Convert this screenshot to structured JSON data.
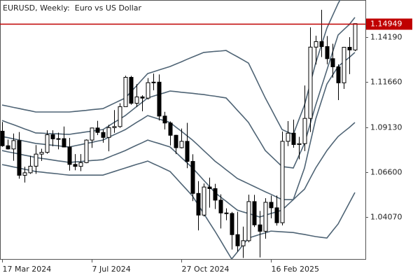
{
  "chart_data": {
    "type": "candlestick",
    "title": "EURUSD, Weekly:  Euro vs US Dollar",
    "categories": [
      "17 Mar 2024",
      null,
      null,
      null,
      null,
      null,
      null,
      null,
      null,
      null,
      null,
      null,
      null,
      null,
      null,
      null,
      "7 Jul 2024",
      null,
      null,
      null,
      null,
      null,
      null,
      null,
      null,
      null,
      null,
      null,
      null,
      null,
      null,
      null,
      "27 Oct 2024",
      null,
      null,
      null,
      null,
      null,
      null,
      null,
      null,
      null,
      null,
      null,
      null,
      null,
      null,
      null,
      "16 Feb 2025",
      null,
      null,
      null,
      null,
      null,
      null,
      null,
      null,
      null,
      null,
      null,
      null,
      null,
      null,
      null
    ],
    "open": [
      1.089,
      1.0808,
      1.079,
      1.0837,
      1.0642,
      1.0656,
      1.0693,
      1.0761,
      1.0771,
      1.087,
      1.0847,
      1.0848,
      1.0801,
      1.0703,
      1.0692,
      1.0713,
      1.084,
      1.0908,
      1.0883,
      1.0855,
      1.091,
      1.0916,
      1.1028,
      1.1193,
      1.1047,
      1.1083,
      1.1076,
      1.1163,
      1.1166,
      1.0975,
      1.0936,
      1.0867,
      1.0797,
      1.0833,
      1.072,
      1.054,
      1.0418,
      1.0576,
      1.0567,
      1.0502,
      1.043,
      1.0427,
      1.0308,
      1.0245,
      1.0274,
      1.0494,
      1.0363,
      1.0327,
      1.049,
      1.0459,
      1.0375,
      1.0833,
      1.0879,
      1.0815,
      1.082,
      1.0962,
      1.1363,
      1.1394,
      1.1366,
      1.1298,
      1.1252,
      1.1162,
      1.1362,
      1.1347
    ],
    "high": [
      1.0942,
      1.0843,
      1.0877,
      1.0885,
      1.069,
      1.0752,
      1.0812,
      1.0791,
      1.0895,
      1.0895,
      1.0882,
      1.0916,
      1.0852,
      1.0761,
      1.0761,
      1.0844,
      1.091,
      1.0948,
      1.0899,
      1.0926,
      1.1009,
      1.1047,
      1.1202,
      1.1201,
      1.1155,
      1.1092,
      1.1189,
      1.1214,
      1.1209,
      1.0999,
      1.0945,
      1.087,
      1.0905,
      1.0937,
      1.076,
      1.0609,
      1.0596,
      1.0629,
      1.0594,
      1.0535,
      1.0456,
      1.0436,
      1.0437,
      1.0353,
      1.0533,
      1.0532,
      1.0441,
      1.0513,
      1.0528,
      1.0528,
      1.0888,
      1.0947,
      1.0955,
      1.0858,
      1.1147,
      1.1474,
      1.1427,
      1.1573,
      1.1425,
      1.1382,
      1.1266,
      1.1363,
      1.1419,
      1.1495
    ],
    "low": [
      1.0802,
      1.0787,
      1.0724,
      1.0623,
      1.0601,
      1.065,
      1.065,
      1.0723,
      1.0763,
      1.0805,
      1.0788,
      1.08,
      1.0668,
      1.067,
      1.0665,
      1.071,
      1.0796,
      1.0868,
      1.0825,
      1.0777,
      1.0881,
      1.0909,
      1.1028,
      1.1039,
      1.1026,
      1.1002,
      1.1068,
      1.112,
      1.095,
      1.09,
      1.081,
      1.0761,
      1.0793,
      1.0682,
      1.0497,
      1.0332,
      1.041,
      1.046,
      1.0452,
      1.0343,
      1.0389,
      1.0224,
      1.0213,
      1.0177,
      1.0265,
      1.0351,
      1.018,
      1.0285,
      1.04,
      1.0359,
      1.036,
      1.0806,
      1.0797,
      1.0732,
      1.0778,
      1.0885,
      1.1265,
      1.1307,
      1.1266,
      1.1191,
      1.1065,
      1.1128,
      1.1211,
      1.134
    ],
    "close": [
      1.0808,
      1.079,
      1.0837,
      1.0642,
      1.0656,
      1.0693,
      1.0761,
      1.0771,
      1.087,
      1.0847,
      1.0848,
      1.0801,
      1.0703,
      1.0692,
      1.0713,
      1.084,
      1.0908,
      1.0883,
      1.0855,
      1.091,
      1.0916,
      1.1028,
      1.1193,
      1.1047,
      1.1083,
      1.1076,
      1.1163,
      1.1166,
      1.0975,
      1.0936,
      1.0867,
      1.0797,
      1.0833,
      1.072,
      1.054,
      1.0418,
      1.0576,
      1.0567,
      1.0502,
      1.043,
      1.0427,
      1.0308,
      1.0245,
      1.0274,
      1.0494,
      1.0363,
      1.0327,
      1.049,
      1.0459,
      1.0375,
      1.0833,
      1.0879,
      1.0815,
      1.082,
      1.0962,
      1.1363,
      1.1394,
      1.1366,
      1.1298,
      1.1252,
      1.1162,
      1.1362,
      1.1347,
      1.1495
    ],
    "up_color": "#ffffff",
    "down_color": "#000000",
    "overlays": [
      {
        "color": "#4f6475",
        "values": [
          1.1037,
          1.1031,
          1.1024,
          1.1018,
          1.1011,
          1.1005,
          1.0998,
          1.0998,
          1.0998,
          1.0998,
          1.0998,
          1.0998,
          1.0998,
          1.1001,
          1.1004,
          1.1007,
          1.1011,
          1.1014,
          1.1017,
          1.1032,
          1.1047,
          1.1062,
          1.1077,
          1.1111,
          1.1145,
          1.118,
          1.1214,
          1.1224,
          1.1234,
          1.1244,
          1.1254,
          1.1267,
          1.128,
          1.1294,
          1.1307,
          1.132,
          1.1333,
          1.1336,
          1.1339,
          1.1341,
          1.1344,
          1.1326,
          1.1309,
          1.1291,
          1.1273,
          1.1208,
          1.1142,
          1.1077,
          1.1018,
          1.0958,
          1.0899,
          1.0885,
          1.0872,
          1.0955,
          1.1037,
          1.1155,
          1.1273,
          1.1372,
          1.147,
          1.1539,
          1.1608,
          1.1667,
          1.1726,
          1.1766
        ]
      },
      {
        "color": "#4f6475",
        "values": [
          1.095,
          1.0938,
          1.0927,
          1.0915,
          1.0903,
          1.0892,
          1.088,
          1.0879,
          1.0877,
          1.0876,
          1.0875,
          1.0873,
          1.0872,
          1.0877,
          1.0881,
          1.0886,
          1.089,
          1.0895,
          1.0899,
          1.0919,
          1.0939,
          1.0958,
          1.0978,
          1.1003,
          1.1028,
          1.1052,
          1.1077,
          1.1087,
          1.1097,
          1.1106,
          1.1116,
          1.1113,
          1.1109,
          1.1106,
          1.1103,
          1.1099,
          1.1096,
          1.1091,
          1.1087,
          1.1082,
          1.1077,
          1.1043,
          1.1008,
          1.0974,
          1.0939,
          1.0886,
          1.0834,
          1.0781,
          1.0751,
          1.0721,
          1.0691,
          1.0687,
          1.0683,
          1.0752,
          1.0821,
          1.0929,
          1.1037,
          1.1136,
          1.1234,
          1.1333,
          1.1431,
          1.1461,
          1.149,
          1.153
        ]
      },
      {
        "color": "#4f6475",
        "values": [
          1.086,
          1.0854,
          1.0847,
          1.0841,
          1.0834,
          1.0828,
          1.0821,
          1.0818,
          1.0814,
          1.0811,
          1.0808,
          1.0804,
          1.0801,
          1.0808,
          1.0814,
          1.0821,
          1.0827,
          1.0834,
          1.084,
          1.0855,
          1.087,
          1.0884,
          1.0899,
          1.0919,
          1.0939,
          1.0958,
          1.0978,
          1.0968,
          1.0958,
          1.0949,
          1.0939,
          1.0914,
          1.089,
          1.0865,
          1.084,
          1.0811,
          1.0781,
          1.0752,
          1.0722,
          1.0698,
          1.0673,
          1.0649,
          1.0624,
          1.0609,
          1.0594,
          1.0579,
          1.0564,
          1.0549,
          1.0535,
          1.052,
          1.0505,
          1.0505,
          1.0505,
          1.0594,
          1.0683,
          1.0821,
          1.0958,
          1.1057,
          1.1155,
          1.1205,
          1.1254,
          1.128,
          1.1305,
          1.1333
        ]
      },
      {
        "color": "#4f6475",
        "values": [
          1.0781,
          1.0774,
          1.0768,
          1.0762,
          1.0755,
          1.0749,
          1.0742,
          1.0737,
          1.0733,
          1.0728,
          1.0723,
          1.0719,
          1.0714,
          1.0717,
          1.0719,
          1.0722,
          1.0725,
          1.0727,
          1.073,
          1.0743,
          1.0756,
          1.0768,
          1.0781,
          1.0796,
          1.0811,
          1.0825,
          1.084,
          1.083,
          1.0821,
          1.0811,
          1.0801,
          1.0772,
          1.0742,
          1.0713,
          1.0683,
          1.0649,
          1.0614,
          1.058,
          1.0545,
          1.052,
          1.0496,
          1.0471,
          1.0446,
          1.0436,
          1.0427,
          1.0417,
          1.0407,
          1.0417,
          1.0427,
          1.0436,
          1.0446,
          1.0476,
          1.0505,
          1.0535,
          1.0564,
          1.0624,
          1.0683,
          1.0732,
          1.0781,
          1.0821,
          1.086,
          1.0886,
          1.0911,
          1.0939
        ]
      },
      {
        "color": "#4f6475",
        "values": [
          1.0702,
          1.0696,
          1.0689,
          1.0683,
          1.0676,
          1.067,
          1.0663,
          1.066,
          1.0656,
          1.0653,
          1.065,
          1.0646,
          1.0643,
          1.0643,
          1.0643,
          1.0643,
          1.0643,
          1.0643,
          1.0643,
          1.0653,
          1.0663,
          1.0673,
          1.0683,
          1.0693,
          1.0703,
          1.0712,
          1.0722,
          1.0707,
          1.0693,
          1.0678,
          1.0663,
          1.0629,
          1.0594,
          1.056,
          1.0525,
          1.0476,
          1.0427,
          1.0377,
          1.0328,
          1.0276,
          1.0223,
          1.0171,
          1.021,
          1.025,
          1.0289,
          1.0299,
          1.0309,
          1.0318,
          1.0328,
          1.0326,
          1.0324,
          1.0322,
          1.032,
          1.0314,
          1.0309,
          1.0303,
          1.0297,
          1.0293,
          1.0289,
          1.0329,
          1.0368,
          1.0427,
          1.0486,
          1.0545
        ]
      }
    ],
    "current_price": 1.14949,
    "current_price_color": "#c00000",
    "ylim": [
      1.0171,
      1.1628
    ],
    "yticks": [
      {
        "value": 1.0407,
        "label": "1.04070"
      },
      {
        "value": 1.066,
        "label": "1.06600"
      },
      {
        "value": 1.0913,
        "label": "1.09130"
      },
      {
        "value": 1.1166,
        "label": "1.11660"
      },
      {
        "value": 1.1419,
        "label": "1.14190"
      }
    ]
  }
}
